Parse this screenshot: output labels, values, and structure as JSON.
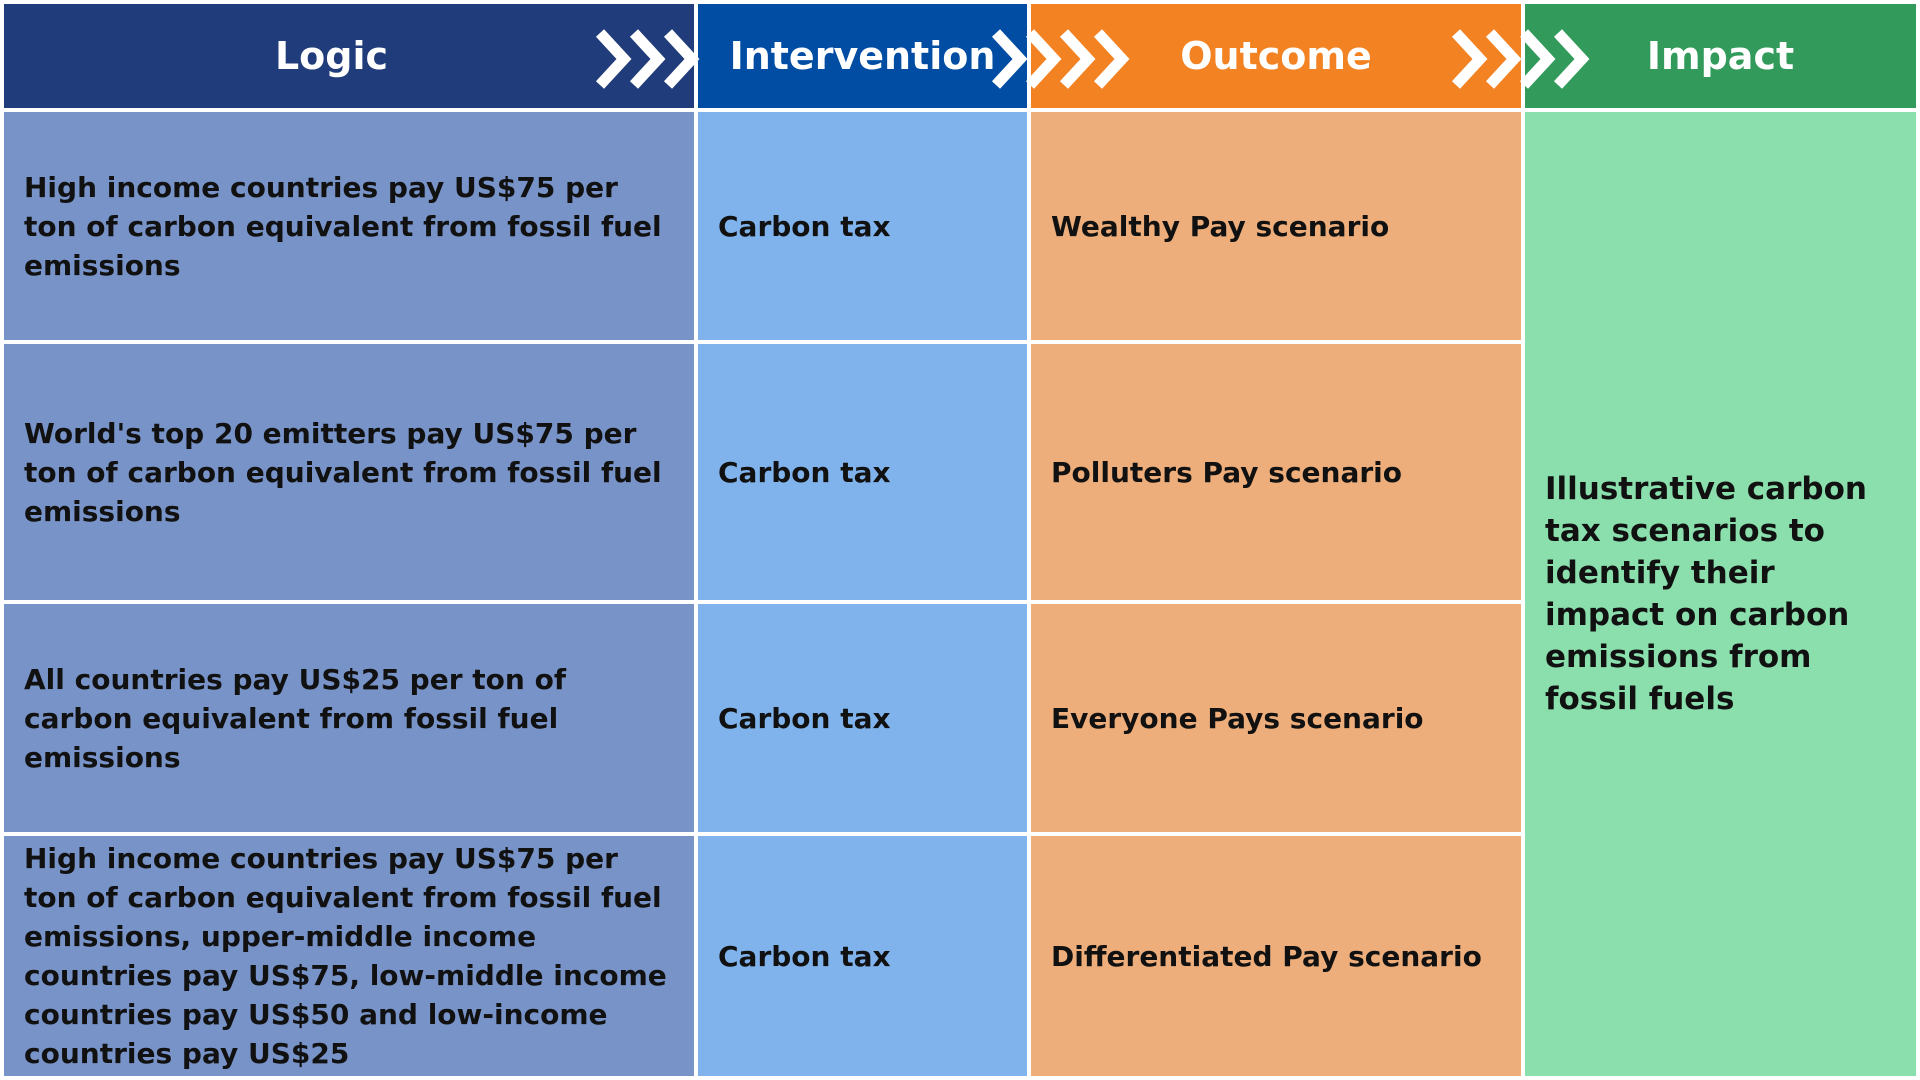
{
  "header": {
    "logic": "Logic",
    "intervention": "Intervention",
    "outcome": "Outcome",
    "impact": "Impact"
  },
  "rows": [
    {
      "logic": "High income countries pay US$75 per ton of carbon equivalent from fossil fuel emissions",
      "intervention": "Carbon tax",
      "outcome": "Wealthy Pay scenario"
    },
    {
      "logic": "World's top 20 emitters pay US$75 per ton of carbon equivalent from fossil fuel emissions",
      "intervention": "Carbon tax",
      "outcome": "Polluters Pay scenario"
    },
    {
      "logic": "All countries pay US$25 per ton of carbon equivalent from fossil fuel emissions",
      "intervention": "Carbon tax",
      "outcome": "Everyone Pays scenario"
    },
    {
      "logic": "High income countries pay US$75 per ton of carbon equivalent from fossil fuel emissions, upper-middle income countries pay US$75, low-middle income countries pay US$50 and low-income countries pay US$25",
      "intervention": "Carbon tax",
      "outcome": "Differentiated Pay scenario"
    }
  ],
  "impact": "Illustrative carbon tax scenarios to identify their impact on carbon emissions from fossil fuels",
  "colors": {
    "logic_header": "#203c7a",
    "intervention_header": "#004da3",
    "outcome_header": "#f28222",
    "impact_header": "#329a5a",
    "logic_cell": "#7893c8",
    "intervention_cell": "#80b3ec",
    "outcome_cell": "#edae7b",
    "impact_cell": "#8adfad"
  },
  "icons": [
    "chevron-right-icon"
  ]
}
